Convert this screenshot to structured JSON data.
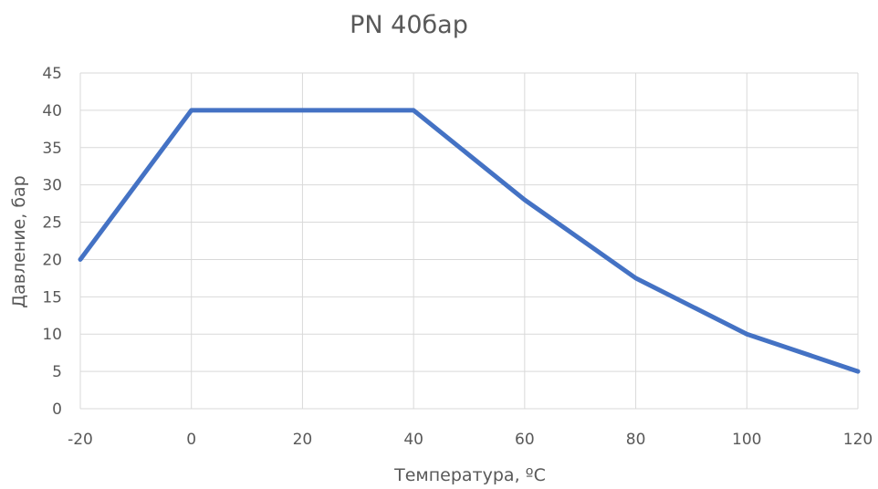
{
  "chart_data": {
    "type": "line",
    "title": "PN 40бар",
    "xlabel": "Температура, ºС",
    "ylabel": "Давление, бар",
    "x": [
      -20,
      0,
      20,
      40,
      60,
      80,
      100,
      120
    ],
    "x_ticks": [
      "-20",
      "0",
      "20",
      "40",
      "60",
      "80",
      "100",
      "120"
    ],
    "y_ticks": [
      "0",
      "5",
      "10",
      "15",
      "20",
      "25",
      "30",
      "35",
      "40",
      "45"
    ],
    "xlim": [
      -20,
      120
    ],
    "ylim": [
      0,
      45
    ],
    "grid": true,
    "legend": "none",
    "series": [
      {
        "values": [
          20,
          40,
          40,
          40,
          28,
          17.5,
          10,
          5
        ],
        "color": "#4472c4"
      }
    ]
  }
}
